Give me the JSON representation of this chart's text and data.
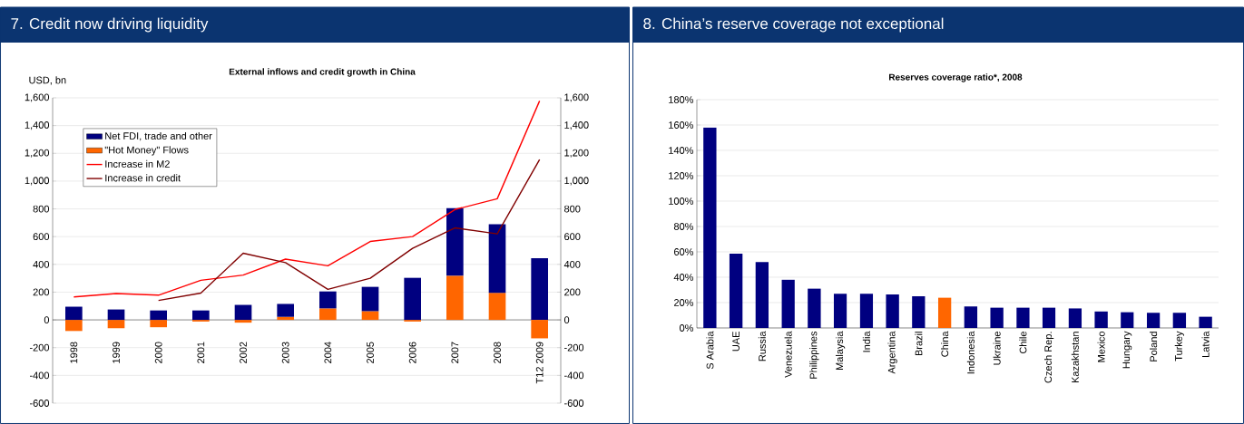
{
  "chart_data": [
    {
      "type": "bar",
      "title": "7. Credit now driving liquidity",
      "subtitle": "External inflows and credit growth in China",
      "ylabel": "USD, bn",
      "categories": [
        "1998",
        "1999",
        "2000",
        "2001",
        "2002",
        "2003",
        "2004",
        "2005",
        "2006",
        "2007",
        "2008",
        "T12 2009"
      ],
      "stacked": true,
      "series": [
        {
          "name": "\"Hot Money\" Flows",
          "color": "#ff6600",
          "values": [
            -80,
            -60,
            -53,
            -12,
            -20,
            22,
            83,
            63,
            -12,
            318,
            195,
            -133
          ]
        },
        {
          "name": "Net FDI, trade and other",
          "color": "#000080",
          "values": [
            95,
            75,
            68,
            68,
            108,
            93,
            122,
            175,
            303,
            487,
            495,
            445
          ]
        },
        {
          "name": "Increase in M2",
          "type": "line",
          "axis": "y2",
          "color": "#ff0000",
          "values": [
            165,
            190,
            178,
            285,
            323,
            438,
            390,
            565,
            600,
            795,
            873,
            1578
          ]
        },
        {
          "name": "Increase in credit",
          "type": "line",
          "axis": "y2",
          "color": "#800000",
          "values": [
            null,
            null,
            140,
            193,
            480,
            413,
            220,
            300,
            515,
            663,
            620,
            1155
          ]
        }
      ],
      "ylim": [
        -600,
        1600
      ],
      "yticks": [
        -600,
        -400,
        -200,
        0,
        200,
        400,
        600,
        800,
        {
          "value": 1000,
          "label": "1,000"
        },
        {
          "value": 1200,
          "label": "1,200"
        },
        {
          "value": 1400,
          "label": "1,400"
        },
        {
          "value": 1600,
          "label": "1,600"
        }
      ],
      "y2lim": [
        -600,
        1600
      ],
      "y2ticks": [
        -600,
        -400,
        -200,
        0,
        200,
        400,
        600,
        800,
        {
          "value": 1000,
          "label": "1,000"
        },
        {
          "value": 1200,
          "label": "1,200"
        },
        {
          "value": 1400,
          "label": "1,400"
        },
        {
          "value": 1600,
          "label": "1,600"
        }
      ],
      "grid": "y",
      "legend": "top left"
    },
    {
      "type": "bar",
      "title": "8. China’s reserve coverage not exceptional",
      "subtitle": "Reserves coverage ratio*, 2008",
      "categories": [
        "S Arabia",
        "UAE",
        "Russia",
        "Venezuela",
        "Philippines",
        "Malaysia",
        "India",
        "Argentina",
        "Brazil",
        "China",
        "Indonesia",
        "Ukraine",
        "Chile",
        "Czech Rep.",
        "Kazakhstan",
        "Mexico",
        "Hungary",
        "Poland",
        "Turkey",
        "Latvia"
      ],
      "values": [
        158,
        58.5,
        52,
        38,
        31,
        27,
        27,
        26.5,
        25,
        24,
        17,
        16,
        16,
        16,
        15.5,
        13,
        12.5,
        12,
        12,
        9
      ],
      "colors": [
        "#000080",
        "#000080",
        "#000080",
        "#000080",
        "#000080",
        "#000080",
        "#000080",
        "#000080",
        "#000080",
        "#ff6600",
        "#000080",
        "#000080",
        "#000080",
        "#000080",
        "#000080",
        "#000080",
        "#000080",
        "#000080",
        "#000080",
        "#000080"
      ],
      "ylim": [
        0,
        180
      ],
      "yticks": [
        {
          "value": 0,
          "label": "0%"
        },
        {
          "value": 20,
          "label": "20%"
        },
        {
          "value": 40,
          "label": "40%"
        },
        {
          "value": 60,
          "label": "60%"
        },
        {
          "value": 80,
          "label": "80%"
        },
        {
          "value": 100,
          "label": "100%"
        },
        {
          "value": 120,
          "label": "120%"
        },
        {
          "value": 140,
          "label": "140%"
        },
        {
          "value": 160,
          "label": "160%"
        },
        {
          "value": 180,
          "label": "180%"
        }
      ],
      "grid": "y"
    }
  ]
}
